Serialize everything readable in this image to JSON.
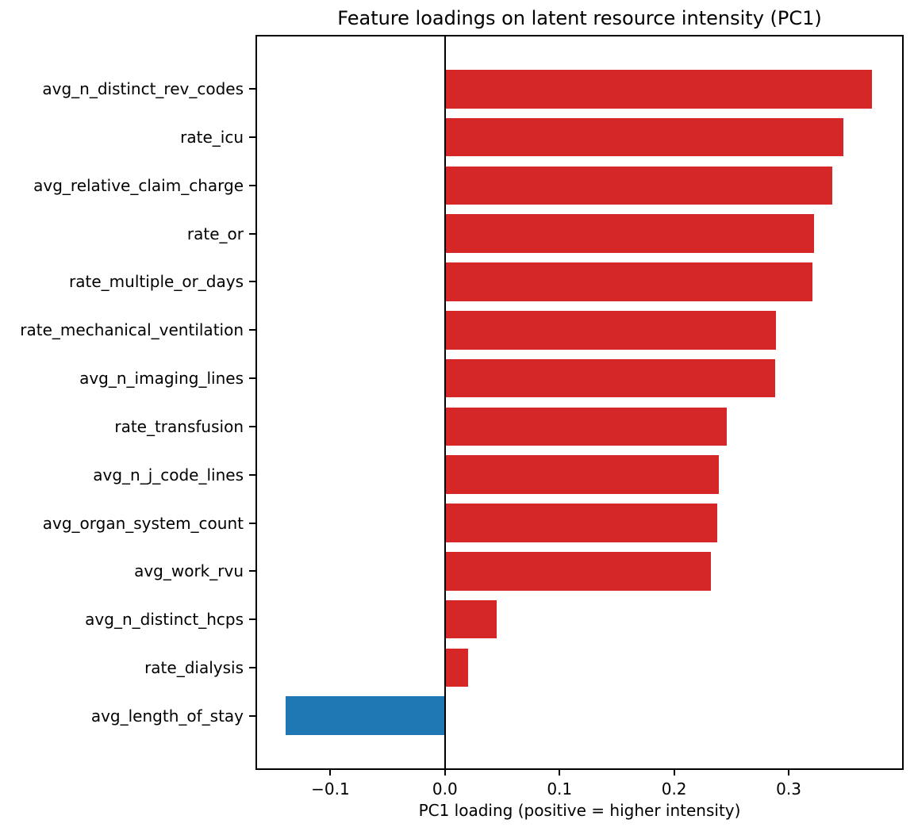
{
  "chart_data": {
    "type": "bar",
    "orientation": "horizontal",
    "title": "Feature loadings on latent resource intensity (PC1)",
    "xlabel": "PC1 loading (positive = higher intensity)",
    "ylabel": "",
    "categories": [
      "avg_n_distinct_rev_codes",
      "rate_icu",
      "avg_relative_claim_charge",
      "rate_or",
      "rate_multiple_or_days",
      "rate_mechanical_ventilation",
      "avg_n_imaging_lines",
      "rate_transfusion",
      "avg_n_j_code_lines",
      "avg_organ_system_count",
      "avg_work_rvu",
      "avg_n_distinct_hcps",
      "rate_dialysis",
      "avg_length_of_stay"
    ],
    "values": [
      0.373,
      0.348,
      0.338,
      0.322,
      0.321,
      0.289,
      0.288,
      0.246,
      0.239,
      0.238,
      0.232,
      0.045,
      0.02,
      -0.139
    ],
    "xlim": [
      -0.164,
      0.399
    ],
    "xticks": [
      {
        "label": "−0.1",
        "value": -0.1
      },
      {
        "label": "0.0",
        "value": 0.0
      },
      {
        "label": "0.1",
        "value": 0.1
      },
      {
        "label": "0.2",
        "value": 0.2
      },
      {
        "label": "0.3",
        "value": 0.3
      }
    ],
    "colors": {
      "positive_bar": "#d62728",
      "negative_bar": "#1f77b4",
      "axis": "#000000",
      "text": "#000000",
      "background": "#ffffff"
    },
    "grid": false,
    "legend": null,
    "zero_line": true
  }
}
